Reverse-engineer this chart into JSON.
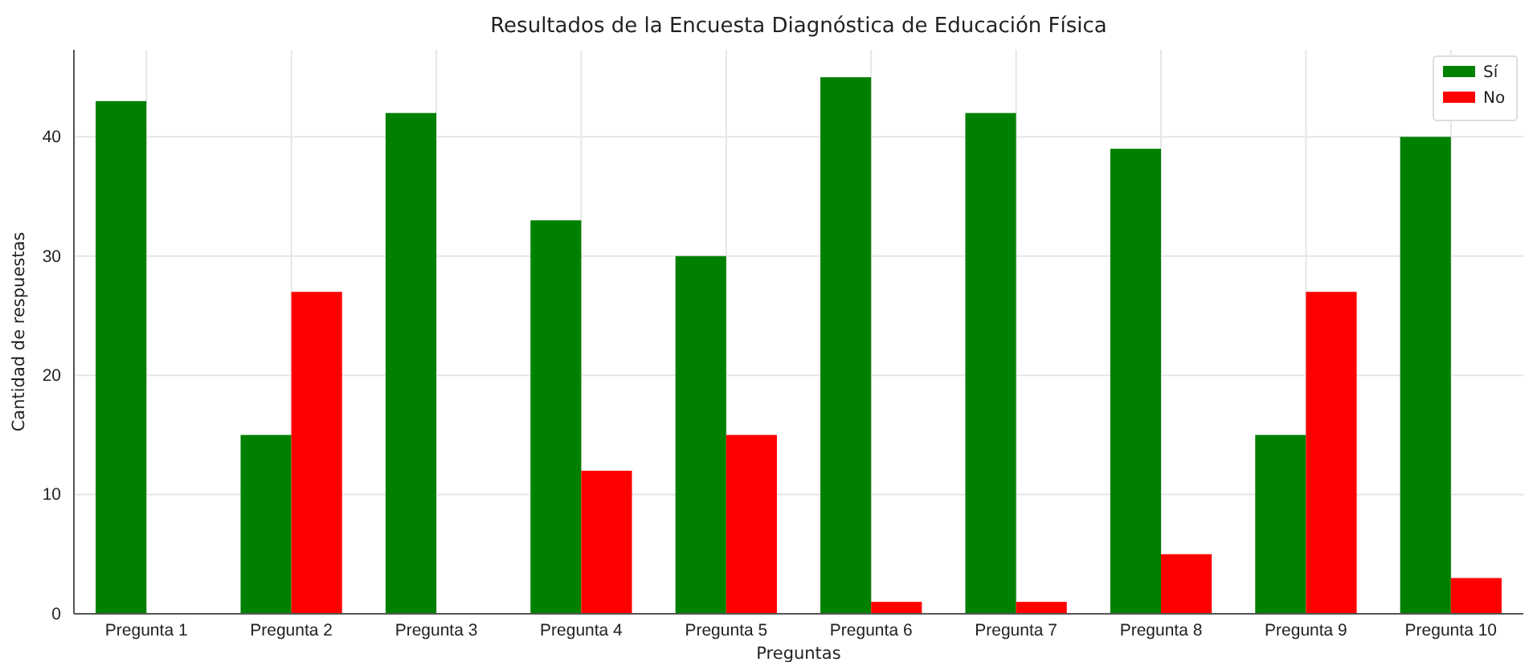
{
  "chart_data": {
    "type": "bar",
    "title": "Resultados de la Encuesta Diagnóstica de Educación Física",
    "xlabel": "Preguntas",
    "ylabel": "Cantidad de respuestas",
    "categories": [
      "Pregunta 1",
      "Pregunta 2",
      "Pregunta 3",
      "Pregunta 4",
      "Pregunta 5",
      "Pregunta 6",
      "Pregunta 7",
      "Pregunta 8",
      "Pregunta 9",
      "Pregunta 10"
    ],
    "series": [
      {
        "name": "Sí",
        "color": "#008000",
        "values": [
          43,
          15,
          42,
          33,
          30,
          45,
          42,
          39,
          15,
          40
        ]
      },
      {
        "name": "No",
        "color": "#ff0000",
        "values": [
          0,
          27,
          0,
          12,
          15,
          1,
          1,
          5,
          27,
          3
        ]
      }
    ],
    "ylim": [
      0,
      47.3
    ],
    "yticks": [
      0,
      10,
      20,
      30,
      40
    ],
    "grid": true,
    "legend": "top right"
  }
}
